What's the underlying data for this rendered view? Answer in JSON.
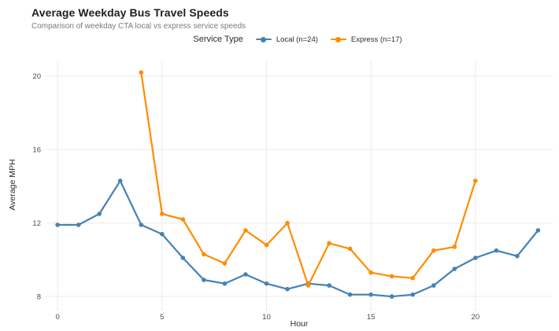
{
  "header": {
    "title": "Average Weekday Bus Travel Speeds",
    "subtitle": "Comparison of weekday CTA local vs express service speeds"
  },
  "legend": {
    "title": "Service Type",
    "items": [
      {
        "label": "Local (n=24)",
        "color": "#4682b4"
      },
      {
        "label": "Express (n=17)",
        "color": "#ff8c00"
      }
    ]
  },
  "chart_data": {
    "type": "line",
    "title": "Average Weekday Bus Travel Speeds",
    "subtitle": "Comparison of weekday CTA local vs express service speeds",
    "xlabel": "Hour",
    "ylabel": "Average MPH",
    "grid": true,
    "legend_position": "top-center",
    "x_ticks": [
      0,
      5,
      10,
      15,
      20
    ],
    "y_ticks": [
      8,
      12,
      16,
      20
    ],
    "x_domain": [
      -0.57,
      23.7
    ],
    "y_domain": [
      7.36,
      20.81
    ],
    "series": [
      {
        "name": "Local (n=24)",
        "color": "#4682b4",
        "x": [
          0,
          1,
          2,
          3,
          4,
          5,
          6,
          7,
          8,
          9,
          10,
          11,
          12,
          13,
          14,
          15,
          16,
          17,
          18,
          19,
          20,
          21,
          22,
          23
        ],
        "y": [
          11.9,
          11.9,
          12.5,
          14.3,
          11.9,
          11.4,
          10.1,
          8.9,
          8.7,
          9.2,
          8.7,
          8.4,
          8.7,
          8.6,
          8.1,
          8.1,
          8.0,
          8.1,
          8.6,
          9.5,
          10.1,
          10.5,
          10.2,
          11.6
        ]
      },
      {
        "name": "Express (n=17)",
        "color": "#ff8c00",
        "x": [
          4,
          5,
          6,
          7,
          8,
          9,
          10,
          11,
          12,
          13,
          14,
          15,
          16,
          17,
          18,
          19,
          20
        ],
        "y": [
          20.2,
          12.5,
          12.2,
          10.3,
          9.8,
          11.6,
          10.8,
          12.0,
          8.6,
          10.9,
          10.6,
          9.3,
          9.1,
          9.0,
          10.5,
          10.7,
          14.3
        ]
      }
    ]
  }
}
